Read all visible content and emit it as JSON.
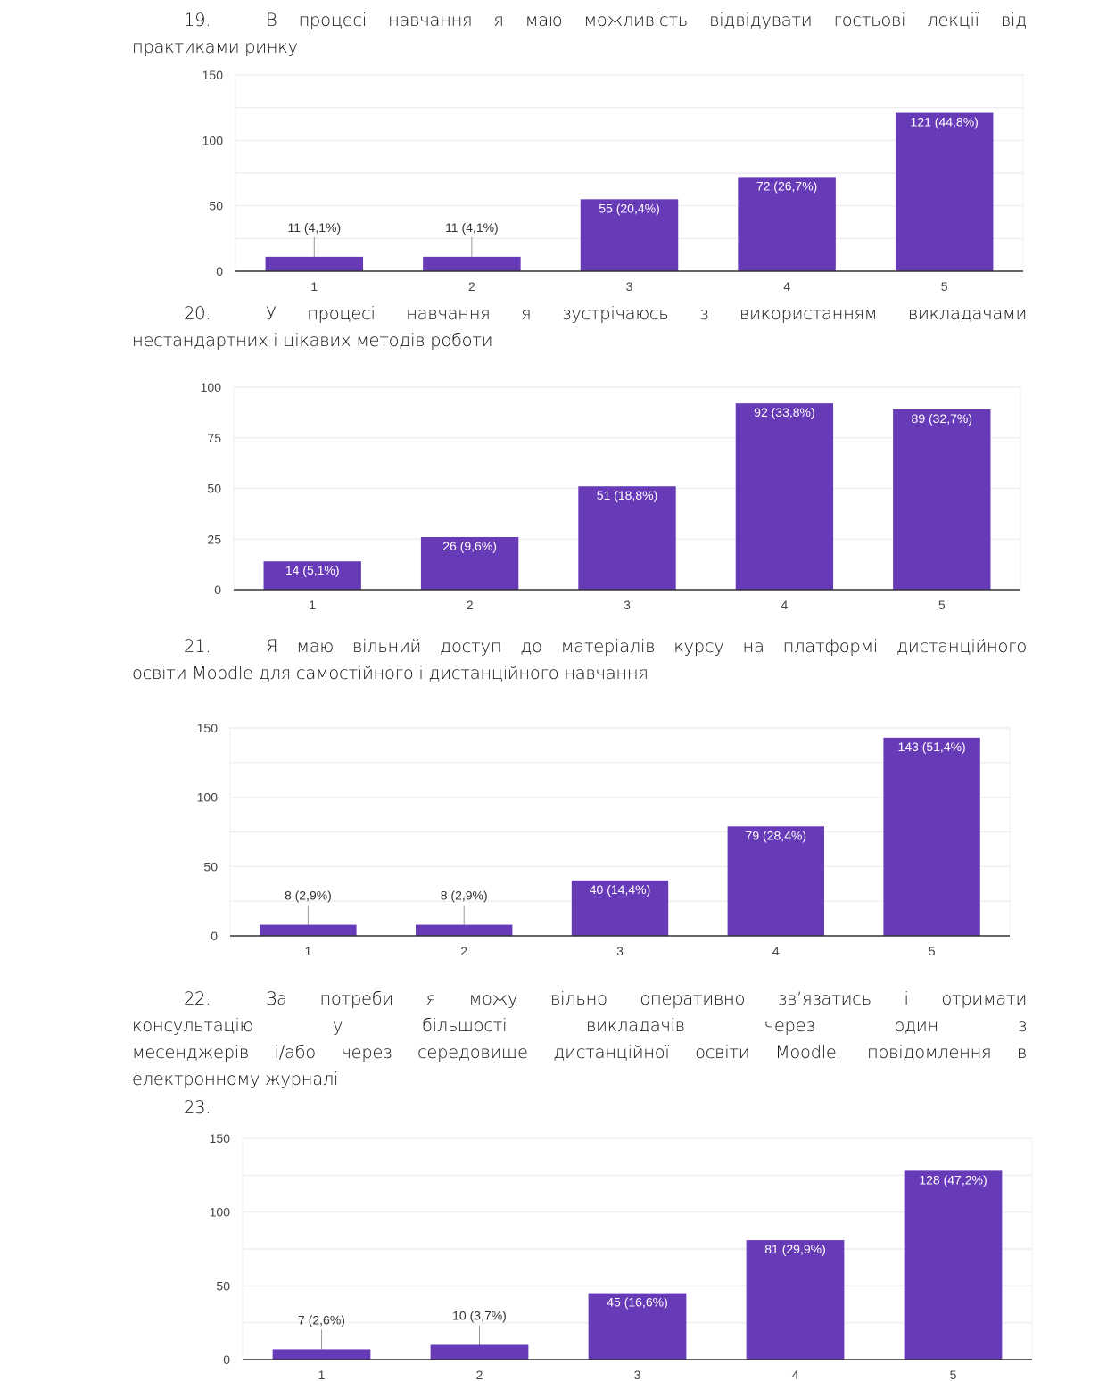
{
  "questions": [
    {
      "number": "19.",
      "text_line1": "В процесі навчання я маю можливість відвідувати гостьові лекції від",
      "text_line2": "практиками ринку"
    },
    {
      "number": "20.",
      "text_line1": "У процесі навчання я зустрічаюсь з використанням викладачами",
      "text_line2": "нестандартних і цікавих методів роботи"
    },
    {
      "number": "21.",
      "text_line1": "Я маю вільний доступ до матеріалів курсу на платформі дистанційного",
      "text_line2": "освіти Moodle для самостійного і дистанційного навчання"
    },
    {
      "number": "22.",
      "text_line1": "За потреби я можу вільно оперативно зв’язатись і отримати",
      "text_line2": "консультацію у більшості викладачів через один з",
      "text_line3": "месенджерів і/або через середовище дистанційної освіти Moodle, повідомлення в",
      "text_line4": "електронному журналі"
    },
    {
      "number": "23."
    }
  ],
  "colors": {
    "bar": "#673ab7",
    "grid": "#ebebeb",
    "axis": "#333333"
  },
  "chart_data": [
    {
      "type": "bar",
      "question": "19",
      "title": "",
      "xlabel": "",
      "ylabel": "",
      "categories": [
        "1",
        "2",
        "3",
        "4",
        "5"
      ],
      "values": [
        11,
        11,
        55,
        72,
        121
      ],
      "labels": [
        "11 (4,1%)",
        "11 (4,1%)",
        "55 (20,4%)",
        "72 (26,7%)",
        "121 (44,8%)"
      ],
      "yticks": [
        0,
        50,
        100,
        150
      ],
      "ylim": [
        0,
        150
      ],
      "minor_step": 25,
      "grid": true
    },
    {
      "type": "bar",
      "question": "20",
      "title": "",
      "xlabel": "",
      "ylabel": "",
      "categories": [
        "1",
        "2",
        "3",
        "4",
        "5"
      ],
      "values": [
        14,
        26,
        51,
        92,
        89
      ],
      "labels": [
        "14 (5,1%)",
        "26 (9,6%)",
        "51 (18,8%)",
        "92 (33,8%)",
        "89 (32,7%)"
      ],
      "yticks": [
        0,
        25,
        50,
        75,
        100
      ],
      "ylim": [
        0,
        100
      ],
      "minor_step": 25,
      "grid": true
    },
    {
      "type": "bar",
      "question": "21",
      "title": "",
      "xlabel": "",
      "ylabel": "",
      "categories": [
        "1",
        "2",
        "3",
        "4",
        "5"
      ],
      "values": [
        8,
        8,
        40,
        79,
        143
      ],
      "labels": [
        "8 (2,9%)",
        "8 (2,9%)",
        "40 (14,4%)",
        "79 (28,4%)",
        "143 (51,4%)"
      ],
      "yticks": [
        0,
        50,
        100,
        150
      ],
      "ylim": [
        0,
        150
      ],
      "minor_step": 25,
      "grid": true
    },
    {
      "type": "bar",
      "question": "22",
      "title": "",
      "xlabel": "",
      "ylabel": "",
      "categories": [
        "1",
        "2",
        "3",
        "4",
        "5"
      ],
      "values": [
        7,
        10,
        45,
        81,
        128
      ],
      "labels": [
        "7 (2,6%)",
        "10 (3,7%)",
        "45 (16,6%)",
        "81 (29,9%)",
        "128 (47,2%)"
      ],
      "yticks": [
        0,
        50,
        100,
        150
      ],
      "ylim": [
        0,
        150
      ],
      "minor_step": 25,
      "grid": true
    }
  ]
}
